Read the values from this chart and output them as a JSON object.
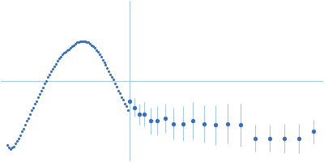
{
  "point_color": "#3A6EB5",
  "line_color": "#A8C8E8",
  "errorbar_point_color": "#3A6EB5",
  "background": "#ffffff",
  "figsize": [
    4.0,
    2.0
  ],
  "dpi": 100,
  "xlim": [
    0.0,
    1.0
  ],
  "ylim": [
    -0.6,
    0.6
  ],
  "vline_x": 0.4,
  "hline_y": 0.0,
  "dense_points": {
    "x": [
      0.02,
      0.025,
      0.03,
      0.035,
      0.04,
      0.045,
      0.05,
      0.055,
      0.06,
      0.065,
      0.07,
      0.075,
      0.08,
      0.085,
      0.09,
      0.095,
      0.1,
      0.105,
      0.11,
      0.115,
      0.12,
      0.125,
      0.13,
      0.135,
      0.14,
      0.145,
      0.15,
      0.155,
      0.16,
      0.165,
      0.17,
      0.175,
      0.18,
      0.185,
      0.19,
      0.195,
      0.2,
      0.205,
      0.21,
      0.215,
      0.22,
      0.225,
      0.23,
      0.235,
      0.24,
      0.245,
      0.25,
      0.255,
      0.26,
      0.265,
      0.27,
      0.275,
      0.28,
      0.285,
      0.29,
      0.295,
      0.3,
      0.305,
      0.31,
      0.315,
      0.32,
      0.325,
      0.33,
      0.335,
      0.34,
      0.345,
      0.35,
      0.355,
      0.36,
      0.365,
      0.37,
      0.375,
      0.38,
      0.385,
      0.39,
      0.395
    ],
    "y": [
      -0.48,
      -0.5,
      -0.51,
      -0.5,
      -0.49,
      -0.47,
      -0.45,
      -0.43,
      -0.41,
      -0.38,
      -0.36,
      -0.33,
      -0.3,
      -0.28,
      -0.25,
      -0.22,
      -0.2,
      -0.17,
      -0.15,
      -0.12,
      -0.1,
      -0.07,
      -0.05,
      -0.02,
      0.0,
      0.03,
      0.05,
      0.07,
      0.09,
      0.11,
      0.13,
      0.15,
      0.17,
      0.18,
      0.2,
      0.21,
      0.22,
      0.23,
      0.24,
      0.25,
      0.26,
      0.27,
      0.28,
      0.29,
      0.29,
      0.3,
      0.3,
      0.3,
      0.3,
      0.29,
      0.29,
      0.28,
      0.27,
      0.26,
      0.25,
      0.23,
      0.22,
      0.2,
      0.18,
      0.16,
      0.14,
      0.12,
      0.1,
      0.07,
      0.05,
      0.03,
      0.01,
      -0.02,
      -0.04,
      -0.07,
      -0.09,
      -0.12,
      -0.14,
      -0.17,
      -0.19,
      -0.22
    ]
  },
  "errorbar_points": {
    "x": [
      0.4,
      0.415,
      0.43,
      0.445,
      0.465,
      0.485,
      0.51,
      0.535,
      0.565,
      0.595,
      0.63,
      0.665,
      0.705,
      0.745,
      0.79,
      0.835,
      0.88,
      0.925,
      0.97
    ],
    "y": [
      -0.15,
      -0.2,
      -0.25,
      -0.25,
      -0.3,
      -0.3,
      -0.28,
      -0.32,
      -0.32,
      -0.3,
      -0.32,
      -0.33,
      -0.32,
      -0.33,
      -0.43,
      -0.43,
      -0.43,
      -0.43,
      -0.38
    ],
    "yerr": [
      0.06,
      0.07,
      0.08,
      0.09,
      0.1,
      0.11,
      0.11,
      0.12,
      0.13,
      0.14,
      0.14,
      0.15,
      0.15,
      0.16,
      0.1,
      0.1,
      0.11,
      0.11,
      0.09
    ]
  }
}
